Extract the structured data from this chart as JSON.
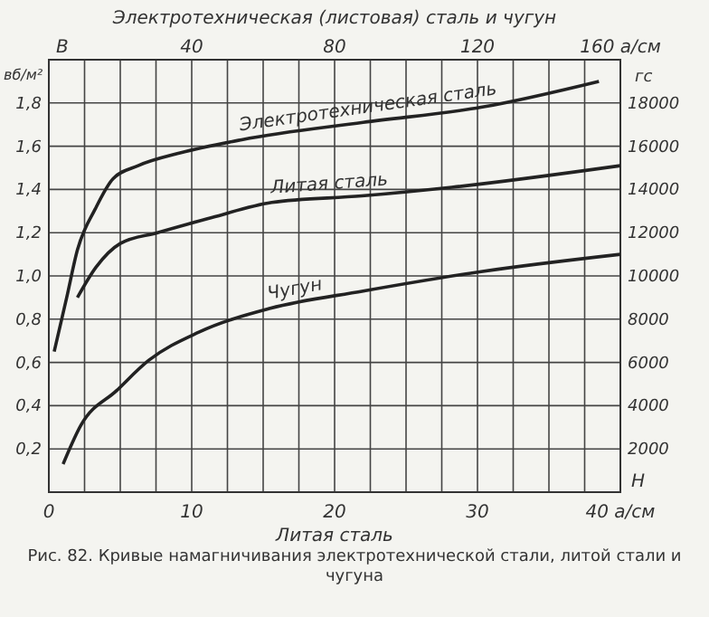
{
  "chart_data": {
    "type": "line",
    "xlabel": "Литая сталь",
    "x2label": "Электротехническая (листовая) сталь и чугун",
    "ylabel": "вб/м²",
    "y2label": "гс",
    "xlim": [
      0,
      40
    ],
    "xticks": [
      0,
      {
        "value": 2.5,
        "label": null
      },
      {
        "value": 5,
        "label": null
      },
      {
        "value": 7.5,
        "label": null
      },
      10,
      {
        "value": 12.5,
        "label": null
      },
      {
        "value": 15,
        "label": null
      },
      {
        "value": 17.5,
        "label": null
      },
      20,
      {
        "value": 22.5,
        "label": null
      },
      {
        "value": 25,
        "label": null
      },
      {
        "value": 27.5,
        "label": null
      },
      30,
      {
        "value": 32.5,
        "label": null
      },
      {
        "value": 35,
        "label": null
      },
      {
        "value": 37.5,
        "label": null
      },
      {
        "value": 40,
        "label": "40 а/см"
      }
    ],
    "x2lim": [
      0,
      160
    ],
    "x2ticks": [
      40,
      80,
      120,
      {
        "value": 160,
        "label": "160 а/см"
      }
    ],
    "ylim": [
      0,
      2
    ],
    "yticks": [
      {
        "value": 0.2,
        "label": "0,2"
      },
      {
        "value": 0.4,
        "label": "0,4"
      },
      {
        "value": 0.6,
        "label": "0,6"
      },
      {
        "value": 0.8,
        "label": "0,8"
      },
      {
        "value": 1,
        "label": "1,0"
      },
      {
        "value": 1.2,
        "label": "1,2"
      },
      {
        "value": 1.4,
        "label": "1,4"
      },
      {
        "value": 1.6,
        "label": "1,6"
      },
      {
        "value": 1.8,
        "label": "1,8"
      }
    ],
    "y2lim": [
      0,
      20000
    ],
    "y2ticks": [
      2000,
      4000,
      6000,
      8000,
      10000,
      12000,
      14000,
      16000,
      18000
    ],
    "grid": true,
    "annotations": [
      "Рис. 82. Кривые намагничивания электротехнической стали, литой стали и чугуна",
      "B",
      "H"
    ],
    "series": [
      {
        "name": "Электротехническая сталь",
        "color": "#222222",
        "axis": "x2",
        "x": [
          1.5,
          5,
          8,
          13,
          18,
          25,
          37,
          54,
          88,
          121,
          154
        ],
        "values": [
          0.65,
          0.9,
          1.12,
          1.31,
          1.45,
          1.51,
          1.57,
          1.63,
          1.71,
          1.78,
          1.9
        ]
      },
      {
        "name": "Литая сталь",
        "color": "#222222",
        "x": [
          2,
          3.3,
          5,
          7.6,
          11.4,
          15.6,
          21.9,
          28.2,
          40
        ],
        "values": [
          0.9,
          1.04,
          1.15,
          1.2,
          1.27,
          1.34,
          1.37,
          1.41,
          1.51
        ]
      },
      {
        "name": "Чугун",
        "color": "#222222",
        "axis": "x2",
        "x": [
          4,
          9,
          19,
          28,
          42,
          62,
          88,
          121,
          160
        ],
        "values": [
          0.13,
          0.31,
          0.47,
          0.61,
          0.74,
          0.85,
          0.93,
          1.02,
          1.1
        ]
      }
    ]
  }
}
